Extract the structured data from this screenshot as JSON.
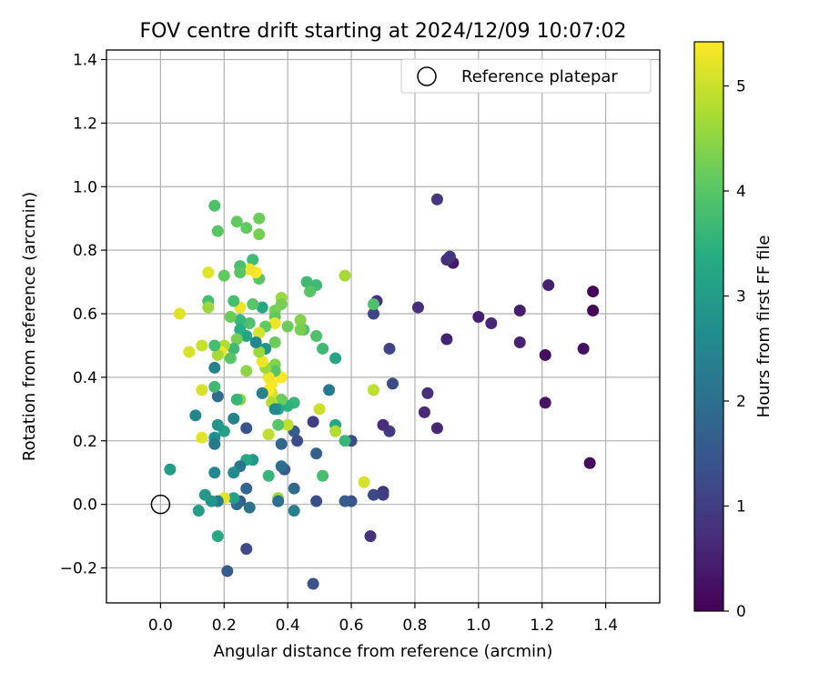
{
  "chart_data": {
    "type": "scatter",
    "title": "FOV centre drift starting at 2024/12/09 10:07:02",
    "xlabel": "Angular distance from reference (arcmin)",
    "ylabel": "Rotation from reference (arcmin)",
    "xlim": [
      -0.17,
      1.57
    ],
    "ylim": [
      -0.31,
      1.43
    ],
    "xticks": [
      0.0,
      0.2,
      0.4,
      0.6,
      0.8,
      1.0,
      1.2,
      1.4
    ],
    "xtick_labels": [
      "0.0",
      "0.2",
      "0.4",
      "0.6",
      "0.8",
      "1.0",
      "1.2",
      "1.4"
    ],
    "yticks": [
      -0.2,
      0.0,
      0.2,
      0.4,
      0.6,
      0.8,
      1.0,
      1.2,
      1.4
    ],
    "ytick_labels": [
      "−0.2",
      "0.0",
      "0.2",
      "0.4",
      "0.6",
      "0.8",
      "1.0",
      "1.2",
      "1.4"
    ],
    "grid": true,
    "legend": {
      "placement": "top-right",
      "entries": [
        "Reference platepar"
      ]
    },
    "reference_point": {
      "x": 0.0,
      "y": 0.0
    },
    "colorbar": {
      "label": "Hours from first FF file",
      "range": [
        0,
        5.42
      ],
      "ticks": [
        0,
        1,
        2,
        3,
        4,
        5
      ],
      "tick_labels": [
        "0",
        "1",
        "2",
        "3",
        "4",
        "5"
      ],
      "colormap": "viridis"
    },
    "points": [
      {
        "x": 1.36,
        "y": 0.67,
        "h": 0.05
      },
      {
        "x": 1.36,
        "y": 0.61,
        "h": 0.1
      },
      {
        "x": 1.35,
        "y": 0.13,
        "h": 0.15
      },
      {
        "x": 1.33,
        "y": 0.49,
        "h": 0.25
      },
      {
        "x": 1.21,
        "y": 0.47,
        "h": 0.2
      },
      {
        "x": 1.21,
        "y": 0.32,
        "h": 0.3
      },
      {
        "x": 1.22,
        "y": 0.69,
        "h": 0.5
      },
      {
        "x": 1.13,
        "y": 0.61,
        "h": 0.45
      },
      {
        "x": 1.13,
        "y": 0.51,
        "h": 0.55
      },
      {
        "x": 1.04,
        "y": 0.57,
        "h": 0.6
      },
      {
        "x": 1.0,
        "y": 0.59,
        "h": 0.5
      },
      {
        "x": 0.92,
        "y": 0.76,
        "h": 0.4
      },
      {
        "x": 0.91,
        "y": 0.78,
        "h": 0.9
      },
      {
        "x": 0.9,
        "y": 0.77,
        "h": 0.8
      },
      {
        "x": 0.87,
        "y": 0.96,
        "h": 0.85
      },
      {
        "x": 0.9,
        "y": 0.52,
        "h": 0.55
      },
      {
        "x": 0.81,
        "y": 0.62,
        "h": 0.7
      },
      {
        "x": 0.84,
        "y": 0.35,
        "h": 0.75
      },
      {
        "x": 0.83,
        "y": 0.29,
        "h": 0.65
      },
      {
        "x": 0.87,
        "y": 0.24,
        "h": 0.6
      },
      {
        "x": 0.73,
        "y": 0.38,
        "h": 1.2
      },
      {
        "x": 0.72,
        "y": 0.49,
        "h": 1.1
      },
      {
        "x": 0.72,
        "y": 0.23,
        "h": 0.95
      },
      {
        "x": 0.7,
        "y": 0.25,
        "h": 0.7
      },
      {
        "x": 0.68,
        "y": 0.64,
        "h": 0.75
      },
      {
        "x": 0.67,
        "y": 0.6,
        "h": 1.15
      },
      {
        "x": 0.7,
        "y": 0.04,
        "h": 0.8
      },
      {
        "x": 0.7,
        "y": 0.03,
        "h": 1.0
      },
      {
        "x": 0.67,
        "y": 0.03,
        "h": 1.2
      },
      {
        "x": 0.66,
        "y": -0.1,
        "h": 0.8
      },
      {
        "x": 0.58,
        "y": 0.72,
        "h": 4.7
      },
      {
        "x": 0.67,
        "y": 0.63,
        "h": 3.9
      },
      {
        "x": 0.67,
        "y": 0.36,
        "h": 4.9
      },
      {
        "x": 0.64,
        "y": 0.07,
        "h": 5.1
      },
      {
        "x": 0.6,
        "y": 0.2,
        "h": 1.3
      },
      {
        "x": 0.58,
        "y": 0.2,
        "h": 3.6
      },
      {
        "x": 0.6,
        "y": 0.01,
        "h": 1.45
      },
      {
        "x": 0.58,
        "y": 0.01,
        "h": 1.6
      },
      {
        "x": 0.55,
        "y": 0.46,
        "h": 3.2
      },
      {
        "x": 0.55,
        "y": 0.25,
        "h": 3.3
      },
      {
        "x": 0.55,
        "y": 0.23,
        "h": 4.8
      },
      {
        "x": 0.53,
        "y": 0.36,
        "h": 2.2
      },
      {
        "x": 0.51,
        "y": 0.49,
        "h": 3.7
      },
      {
        "x": 0.51,
        "y": 0.09,
        "h": 3.8
      },
      {
        "x": 0.5,
        "y": 0.3,
        "h": 5.0
      },
      {
        "x": 0.49,
        "y": 0.69,
        "h": 3.7
      },
      {
        "x": 0.49,
        "y": 0.53,
        "h": 3.9
      },
      {
        "x": 0.49,
        "y": 0.16,
        "h": 1.7
      },
      {
        "x": 0.49,
        "y": 0.01,
        "h": 1.3
      },
      {
        "x": 0.48,
        "y": 0.26,
        "h": 1.0
      },
      {
        "x": 0.48,
        "y": -0.25,
        "h": 1.4
      },
      {
        "x": 0.46,
        "y": 0.7,
        "h": 3.7
      },
      {
        "x": 0.47,
        "y": 0.67,
        "h": 4.0
      },
      {
        "x": 0.45,
        "y": 0.55,
        "h": 3.9
      },
      {
        "x": 0.44,
        "y": 0.58,
        "h": 4.4
      },
      {
        "x": 0.44,
        "y": 0.55,
        "h": 4.3
      },
      {
        "x": 0.42,
        "y": 0.32,
        "h": 3.6
      },
      {
        "x": 0.42,
        "y": 0.23,
        "h": 1.6
      },
      {
        "x": 0.42,
        "y": 0.05,
        "h": 1.9
      },
      {
        "x": 0.42,
        "y": -0.02,
        "h": 2.3
      },
      {
        "x": 0.43,
        "y": 0.2,
        "h": 1.3
      },
      {
        "x": 0.4,
        "y": 0.56,
        "h": 4.2
      },
      {
        "x": 0.4,
        "y": 0.31,
        "h": 3.5
      },
      {
        "x": 0.4,
        "y": 0.25,
        "h": 4.9
      },
      {
        "x": 0.39,
        "y": 0.11,
        "h": 1.6
      },
      {
        "x": 0.38,
        "y": 0.12,
        "h": 2.0
      },
      {
        "x": 0.38,
        "y": 0.65,
        "h": 4.6
      },
      {
        "x": 0.38,
        "y": 0.63,
        "h": 4.3
      },
      {
        "x": 0.38,
        "y": 0.4,
        "h": 5.4
      },
      {
        "x": 0.38,
        "y": 0.33,
        "h": 4.2
      },
      {
        "x": 0.38,
        "y": 0.19,
        "h": 1.8
      },
      {
        "x": 0.37,
        "y": 0.3,
        "h": 3.3
      },
      {
        "x": 0.37,
        "y": 0.25,
        "h": 4.0
      },
      {
        "x": 0.37,
        "y": 0.02,
        "h": 4.6
      },
      {
        "x": 0.37,
        "y": 0.01,
        "h": 2.0
      },
      {
        "x": 0.36,
        "y": 0.61,
        "h": 4.3
      },
      {
        "x": 0.36,
        "y": 0.59,
        "h": 4.1
      },
      {
        "x": 0.36,
        "y": 0.57,
        "h": 5.3
      },
      {
        "x": 0.36,
        "y": 0.51,
        "h": 4.2
      },
      {
        "x": 0.36,
        "y": 0.44,
        "h": 4.4
      },
      {
        "x": 0.36,
        "y": 0.42,
        "h": 4.0
      },
      {
        "x": 0.35,
        "y": 0.38,
        "h": 5.4
      },
      {
        "x": 0.35,
        "y": 0.35,
        "h": 5.1
      },
      {
        "x": 0.35,
        "y": 0.32,
        "h": 4.8
      },
      {
        "x": 0.36,
        "y": 0.3,
        "h": 2.6
      },
      {
        "x": 0.34,
        "y": 0.4,
        "h": 5.3
      },
      {
        "x": 0.34,
        "y": 0.36,
        "h": 5.4
      },
      {
        "x": 0.34,
        "y": 0.22,
        "h": 4.9
      },
      {
        "x": 0.34,
        "y": 0.09,
        "h": 3.6
      },
      {
        "x": 0.33,
        "y": 0.56,
        "h": 4.1
      },
      {
        "x": 0.33,
        "y": 0.49,
        "h": 2.8
      },
      {
        "x": 0.33,
        "y": 0.43,
        "h": 4.6
      },
      {
        "x": 0.32,
        "y": 0.35,
        "h": 2.4
      },
      {
        "x": 0.32,
        "y": 0.62,
        "h": 3.3
      },
      {
        "x": 0.32,
        "y": 0.45,
        "h": 5.3
      },
      {
        "x": 0.31,
        "y": 0.9,
        "h": 4.2
      },
      {
        "x": 0.31,
        "y": 0.85,
        "h": 4.3
      },
      {
        "x": 0.31,
        "y": 0.71,
        "h": 4.0
      },
      {
        "x": 0.31,
        "y": 0.54,
        "h": 5.1
      },
      {
        "x": 0.31,
        "y": 0.48,
        "h": 4.6
      },
      {
        "x": 0.3,
        "y": 0.51,
        "h": 2.5
      },
      {
        "x": 0.3,
        "y": 0.73,
        "h": 5.4
      },
      {
        "x": 0.29,
        "y": 0.77,
        "h": 3.7
      },
      {
        "x": 0.29,
        "y": 0.63,
        "h": 4.0
      },
      {
        "x": 0.29,
        "y": 0.14,
        "h": 2.9
      },
      {
        "x": 0.28,
        "y": 0.74,
        "h": 5.3
      },
      {
        "x": 0.28,
        "y": 0.57,
        "h": 3.9
      },
      {
        "x": 0.27,
        "y": 0.87,
        "h": 4.1
      },
      {
        "x": 0.27,
        "y": 0.53,
        "h": 3.2
      },
      {
        "x": 0.27,
        "y": 0.42,
        "h": 4.5
      },
      {
        "x": 0.27,
        "y": 0.24,
        "h": 1.4
      },
      {
        "x": 0.27,
        "y": 0.14,
        "h": 3.3
      },
      {
        "x": 0.27,
        "y": 0.05,
        "h": 1.8
      },
      {
        "x": 0.28,
        "y": -0.01,
        "h": 2.1
      },
      {
        "x": 0.27,
        "y": -0.14,
        "h": 1.2
      },
      {
        "x": 0.25,
        "y": 0.75,
        "h": 3.8
      },
      {
        "x": 0.25,
        "y": 0.73,
        "h": 4.0
      },
      {
        "x": 0.25,
        "y": 0.62,
        "h": 5.3
      },
      {
        "x": 0.25,
        "y": 0.58,
        "h": 3.6
      },
      {
        "x": 0.25,
        "y": 0.55,
        "h": 3.4
      },
      {
        "x": 0.25,
        "y": 0.33,
        "h": 4.5
      },
      {
        "x": 0.25,
        "y": 0.12,
        "h": 2.1
      },
      {
        "x": 0.25,
        "y": 0.01,
        "h": 1.6
      },
      {
        "x": 0.24,
        "y": 0.89,
        "h": 4.1
      },
      {
        "x": 0.24,
        "y": 0.52,
        "h": 4.3
      },
      {
        "x": 0.24,
        "y": 0.33,
        "h": 3.6
      },
      {
        "x": 0.24,
        "y": 0.0,
        "h": 1.9
      },
      {
        "x": 0.23,
        "y": 0.64,
        "h": 3.8
      },
      {
        "x": 0.23,
        "y": 0.49,
        "h": 3.7
      },
      {
        "x": 0.23,
        "y": 0.27,
        "h": 2.4
      },
      {
        "x": 0.23,
        "y": 0.1,
        "h": 2.6
      },
      {
        "x": 0.23,
        "y": 0.02,
        "h": 3.1
      },
      {
        "x": 0.22,
        "y": 0.59,
        "h": 4.2
      },
      {
        "x": 0.22,
        "y": 0.46,
        "h": 4.0
      },
      {
        "x": 0.21,
        "y": -0.21,
        "h": 1.6
      },
      {
        "x": 0.2,
        "y": 0.72,
        "h": 4.1
      },
      {
        "x": 0.2,
        "y": 0.5,
        "h": 4.8
      },
      {
        "x": 0.2,
        "y": 0.23,
        "h": 3.1
      },
      {
        "x": 0.2,
        "y": 0.02,
        "h": 5.2
      },
      {
        "x": 0.19,
        "y": 0.48,
        "h": 5.3
      },
      {
        "x": 0.18,
        "y": 0.86,
        "h": 4.0
      },
      {
        "x": 0.18,
        "y": 0.47,
        "h": 4.7
      },
      {
        "x": 0.18,
        "y": 0.34,
        "h": 1.9
      },
      {
        "x": 0.18,
        "y": 0.25,
        "h": 2.9
      },
      {
        "x": 0.18,
        "y": 0.01,
        "h": 2.2
      },
      {
        "x": 0.18,
        "y": -0.1,
        "h": 3.3
      },
      {
        "x": 0.17,
        "y": 0.94,
        "h": 3.9
      },
      {
        "x": 0.17,
        "y": 0.5,
        "h": 3.8
      },
      {
        "x": 0.17,
        "y": 0.43,
        "h": 2.4
      },
      {
        "x": 0.17,
        "y": 0.37,
        "h": 3.7
      },
      {
        "x": 0.17,
        "y": 0.21,
        "h": 2.7
      },
      {
        "x": 0.17,
        "y": 0.19,
        "h": 2.2
      },
      {
        "x": 0.17,
        "y": 0.1,
        "h": 2.5
      },
      {
        "x": 0.16,
        "y": 0.01,
        "h": 2.8
      },
      {
        "x": 0.15,
        "y": 0.73,
        "h": 5.2
      },
      {
        "x": 0.15,
        "y": 0.64,
        "h": 3.8
      },
      {
        "x": 0.15,
        "y": 0.62,
        "h": 4.6
      },
      {
        "x": 0.14,
        "y": 0.03,
        "h": 2.9
      },
      {
        "x": 0.13,
        "y": 0.5,
        "h": 5.0
      },
      {
        "x": 0.13,
        "y": 0.36,
        "h": 5.1
      },
      {
        "x": 0.13,
        "y": 0.21,
        "h": 5.2
      },
      {
        "x": 0.12,
        "y": -0.02,
        "h": 3.0
      },
      {
        "x": 0.11,
        "y": 0.28,
        "h": 2.5
      },
      {
        "x": 0.09,
        "y": 0.48,
        "h": 5.1
      },
      {
        "x": 0.06,
        "y": 0.6,
        "h": 5.2
      },
      {
        "x": 0.03,
        "y": 0.11,
        "h": 3.0
      }
    ]
  }
}
